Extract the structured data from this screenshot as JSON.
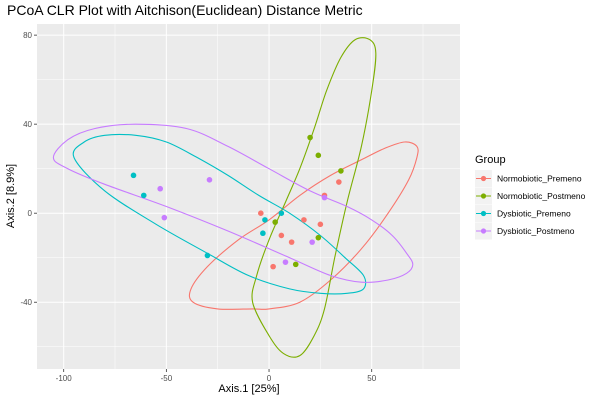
{
  "chart_data": {
    "type": "scatter",
    "title": "PCoA CLR Plot with Aitchison(Euclidean) Distance Metric",
    "xlabel": "Axis.1   [25%]",
    "ylabel": "Axis.2   [8.9%]",
    "xlim": [
      -113,
      93
    ],
    "ylim": [
      -70,
      85
    ],
    "x_ticks": [
      -100,
      -50,
      0,
      50
    ],
    "y_ticks": [
      -40,
      0,
      40,
      80
    ],
    "grid": true,
    "legend_title": "Group",
    "legend_position": "right",
    "series": [
      {
        "name": "Normobiotic_Premeno",
        "color": "#F8766D",
        "points": [
          [
            -4,
            0
          ],
          [
            2,
            -24
          ],
          [
            6,
            -10
          ],
          [
            11,
            -13
          ],
          [
            17,
            -3
          ],
          [
            25,
            -5
          ],
          [
            27,
            8
          ],
          [
            34,
            14
          ]
        ],
        "ellipse_points": [
          [
            -8,
            -43
          ],
          [
            0,
            -43
          ],
          [
            15,
            -40
          ],
          [
            30,
            -30
          ],
          [
            45,
            -16
          ],
          [
            58,
            0
          ],
          [
            68,
            15
          ],
          [
            72,
            25
          ],
          [
            72,
            30
          ],
          [
            66,
            32
          ],
          [
            56,
            29
          ],
          [
            45,
            24
          ],
          [
            30,
            17
          ],
          [
            15,
            8
          ],
          [
            0,
            -3
          ],
          [
            -15,
            -12
          ],
          [
            -30,
            -24
          ],
          [
            -38,
            -34
          ],
          [
            -37,
            -40
          ],
          [
            -25,
            -43
          ]
        ]
      },
      {
        "name": "Normobiotic_Postmeno",
        "color": "#7CAE00",
        "points": [
          [
            3,
            -4
          ],
          [
            13,
            -23
          ],
          [
            20,
            34
          ],
          [
            24,
            26
          ],
          [
            24,
            -11
          ],
          [
            35,
            19
          ]
        ],
        "ellipse_points": [
          [
            -8,
            -40
          ],
          [
            0,
            -55
          ],
          [
            7,
            -63
          ],
          [
            15,
            -64
          ],
          [
            22,
            -55
          ],
          [
            27,
            -43
          ],
          [
            32,
            -20
          ],
          [
            38,
            5
          ],
          [
            45,
            30
          ],
          [
            50,
            55
          ],
          [
            52,
            72
          ],
          [
            49,
            78
          ],
          [
            42,
            78
          ],
          [
            35,
            70
          ],
          [
            28,
            55
          ],
          [
            22,
            38
          ],
          [
            15,
            20
          ],
          [
            8,
            5
          ],
          [
            0,
            -12
          ],
          [
            -6,
            -28
          ]
        ]
      },
      {
        "name": "Dysbiotic_Premeno",
        "color": "#00BFC4",
        "points": [
          [
            -3,
            -9
          ],
          [
            -2,
            -3
          ],
          [
            -30,
            -19
          ],
          [
            -66,
            17
          ],
          [
            -61,
            8
          ],
          [
            6,
            0
          ]
        ],
        "ellipse_points": [
          [
            -95,
            25
          ],
          [
            -90,
            32
          ],
          [
            -80,
            35
          ],
          [
            -65,
            35
          ],
          [
            -50,
            32
          ],
          [
            -35,
            25
          ],
          [
            -20,
            17
          ],
          [
            -5,
            8
          ],
          [
            10,
            0
          ],
          [
            25,
            -10
          ],
          [
            37,
            -20
          ],
          [
            46,
            -28
          ],
          [
            46,
            -34
          ],
          [
            38,
            -36
          ],
          [
            25,
            -36
          ],
          [
            10,
            -34
          ],
          [
            -10,
            -28
          ],
          [
            -30,
            -18
          ],
          [
            -55,
            -5
          ],
          [
            -80,
            10
          ]
        ]
      },
      {
        "name": "Dysbiotic_Postmeno",
        "color": "#C77CFF",
        "points": [
          [
            -53,
            11
          ],
          [
            -51,
            -2
          ],
          [
            -29,
            15
          ],
          [
            8,
            -22
          ],
          [
            21,
            -13
          ],
          [
            27,
            7
          ]
        ],
        "ellipse_points": [
          [
            -105,
            25
          ],
          [
            -98,
            33
          ],
          [
            -85,
            38
          ],
          [
            -65,
            40
          ],
          [
            -40,
            38
          ],
          [
            -20,
            30
          ],
          [
            0,
            20
          ],
          [
            20,
            10
          ],
          [
            38,
            3
          ],
          [
            50,
            -3
          ],
          [
            60,
            -10
          ],
          [
            67,
            -18
          ],
          [
            70,
            -23
          ],
          [
            67,
            -27
          ],
          [
            58,
            -30
          ],
          [
            45,
            -31
          ],
          [
            30,
            -28
          ],
          [
            10,
            -20
          ],
          [
            -20,
            -8
          ],
          [
            -50,
            3
          ],
          [
            -80,
            13
          ],
          [
            -98,
            20
          ]
        ]
      }
    ]
  }
}
